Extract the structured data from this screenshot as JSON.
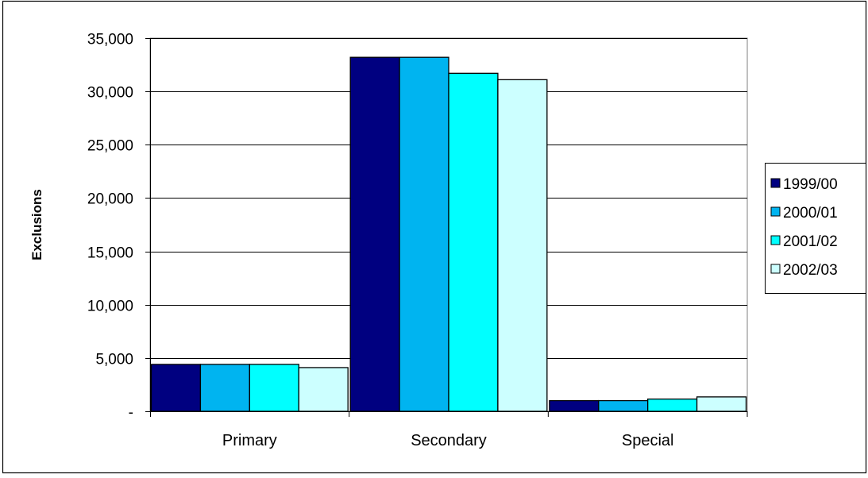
{
  "chart_data": {
    "type": "bar",
    "title": "",
    "xlabel": "",
    "ylabel": "Exclusions",
    "ylim": [
      0,
      35000
    ],
    "yticks": [
      0,
      5000,
      10000,
      15000,
      20000,
      25000,
      30000,
      35000
    ],
    "ytick_labels": [
      "-",
      "5,000",
      "10,000",
      "15,000",
      "20,000",
      "25,000",
      "30,000",
      "35,000"
    ],
    "categories": [
      "Primary",
      "Secondary",
      "Special"
    ],
    "series": [
      {
        "name": "1999/00",
        "values": [
          4400,
          33200,
          1000
        ],
        "color": "#000080"
      },
      {
        "name": "2000/01",
        "values": [
          4400,
          33200,
          1000
        ],
        "color": "#00b4f0"
      },
      {
        "name": "2001/02",
        "values": [
          4400,
          31700,
          1150
        ],
        "color": "#00ffff"
      },
      {
        "name": "2002/03",
        "values": [
          4100,
          31100,
          1350
        ],
        "color": "#ccffff"
      }
    ],
    "grid": true,
    "legend_position": "right"
  }
}
